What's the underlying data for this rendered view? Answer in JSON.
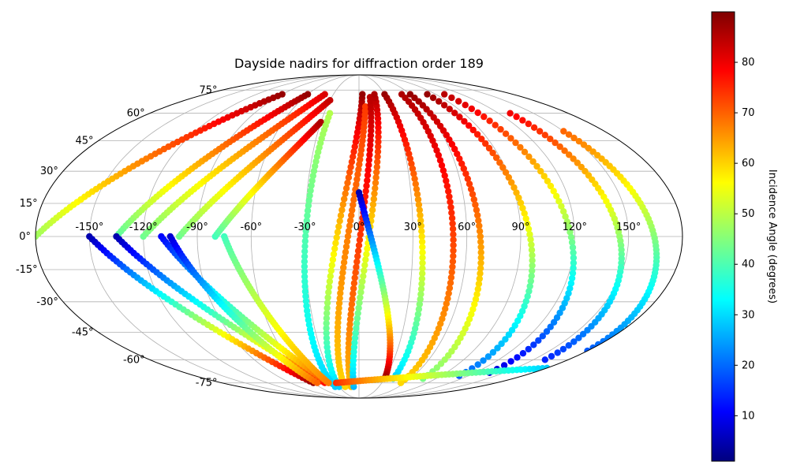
{
  "chart_data": {
    "type": "scatter",
    "projection": "mollweide",
    "title": "Dayside nadirs for diffraction order 189",
    "x_tick_labels": [
      "-150°",
      "-120°",
      "-90°",
      "-60°",
      "-30°",
      "0°",
      "30°",
      "60°",
      "90°",
      "120°",
      "150°"
    ],
    "x_tick_values": [
      -150,
      -120,
      -90,
      -60,
      -30,
      0,
      30,
      60,
      90,
      120,
      150
    ],
    "y_tick_labels": [
      "75°",
      "60°",
      "45°",
      "30°",
      "15°",
      "0°",
      "-15°",
      "-30°",
      "-45°",
      "-60°",
      "-75°"
    ],
    "y_tick_values": [
      75,
      60,
      45,
      30,
      15,
      0,
      -15,
      -30,
      -45,
      -60,
      -75
    ],
    "grid": true,
    "colorbar": {
      "label": "Incidence Angle (degrees)",
      "colormap": "jet",
      "range": [
        1,
        90
      ],
      "ticks": [
        10,
        20,
        30,
        40,
        50,
        60,
        70,
        80
      ],
      "tick_labels": [
        "10",
        "20",
        "30",
        "40",
        "50",
        "60",
        "70",
        "80"
      ]
    },
    "tracks": [
      {
        "start": [
          -180,
          0
        ],
        "end": [
          -90,
          72
        ],
        "inc_start": 48,
        "inc_end": 88
      },
      {
        "start": [
          -135,
          0
        ],
        "end": [
          -60,
          72
        ],
        "inc_start": 42,
        "inc_end": 88
      },
      {
        "start": [
          -120,
          0
        ],
        "end": [
          -40,
          72
        ],
        "inc_start": 44,
        "inc_end": 82
      },
      {
        "start": [
          -100,
          0
        ],
        "end": [
          -30,
          68
        ],
        "inc_start": 44,
        "inc_end": 84
      },
      {
        "start": [
          -80,
          0
        ],
        "end": [
          -30,
          55
        ],
        "inc_start": 40,
        "inc_end": 86
      },
      {
        "start": [
          -30,
          -78
        ],
        "end": [
          4,
          72
        ],
        "inc_start": 30,
        "inc_end": 88
      },
      {
        "start": [
          -21,
          -78
        ],
        "end": [
          6,
          64
        ],
        "inc_start": 60,
        "inc_end": 74
      },
      {
        "start": [
          -12,
          -78
        ],
        "end": [
          12,
          70
        ],
        "inc_start": 62,
        "inc_end": 85
      },
      {
        "start": [
          -8,
          -78
        ],
        "end": [
          18,
          72
        ],
        "inc_start": 28,
        "inc_end": 86
      },
      {
        "start": [
          -36,
          -78
        ],
        "end": [
          -25,
          60
        ],
        "inc_start": 30,
        "inc_end": 50
      },
      {
        "start": [
          -150,
          0
        ],
        "end": [
          -60,
          -75
        ],
        "inc_start": 5,
        "inc_end": 88
      },
      {
        "start": [
          -135,
          0
        ],
        "end": [
          -45,
          -75
        ],
        "inc_start": 5,
        "inc_end": 78
      },
      {
        "start": [
          -110,
          0
        ],
        "end": [
          -40,
          -75
        ],
        "inc_start": 12,
        "inc_end": 74
      },
      {
        "start": [
          -105,
          0
        ],
        "end": [
          -55,
          -75
        ],
        "inc_start": 8,
        "inc_end": 70
      },
      {
        "start": [
          -75,
          0
        ],
        "end": [
          -40,
          -75
        ],
        "inc_start": 40,
        "inc_end": 68
      },
      {
        "start": [
          0,
          20
        ],
        "end": [
          30,
          -72
        ],
        "inc_start": 5,
        "inc_end": 88
      },
      {
        "start": [
          30,
          72
        ],
        "end": [
          40,
          -72
        ],
        "inc_start": 88,
        "inc_end": 30
      },
      {
        "start": [
          50,
          72
        ],
        "end": [
          55,
          -75
        ],
        "inc_start": 86,
        "inc_end": 60
      },
      {
        "start": [
          60,
          72
        ],
        "end": [
          75,
          -72
        ],
        "inc_start": 88,
        "inc_end": 45
      },
      {
        "start": [
          80,
          72
        ],
        "end": [
          110,
          -70
        ],
        "inc_start": 88,
        "inc_end": 20
      },
      {
        "start": [
          100,
          72
        ],
        "end": [
          135,
          -68
        ],
        "inc_start": 85,
        "inc_end": 8
      },
      {
        "start": [
          130,
          60
        ],
        "end": [
          160,
          -60
        ],
        "inc_start": 80,
        "inc_end": 15
      },
      {
        "start": [
          150,
          50
        ],
        "end": [
          180,
          -55
        ],
        "inc_start": 70,
        "inc_end": 20
      },
      {
        "start": [
          -30,
          -75
        ],
        "end": [
          180,
          -65
        ],
        "inc_start": 75,
        "inc_end": 30
      }
    ]
  }
}
